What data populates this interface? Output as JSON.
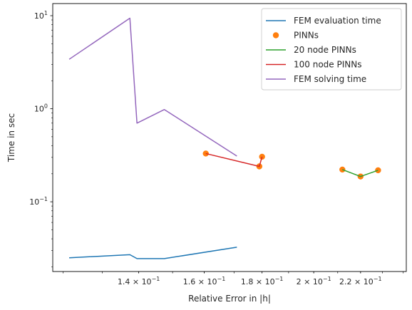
{
  "chart_data": {
    "type": "line",
    "xlabel": "Relative Error in |h|",
    "ylabel": "Time in sec",
    "xscale": "log",
    "yscale": "log",
    "xlim": [
      0.1175,
      0.2415
    ],
    "ylim": [
      0.0178,
      13.5
    ],
    "grid": false,
    "legend_position": "top-right",
    "x_ticks": [
      {
        "value": 0.14,
        "base": "1.4",
        "exp": "−1"
      },
      {
        "value": 0.16,
        "base": "1.6",
        "exp": "−1"
      },
      {
        "value": 0.18,
        "base": "1.8",
        "exp": "−1"
      },
      {
        "value": 0.2,
        "base": "2",
        "exp": "−1"
      },
      {
        "value": 0.22,
        "base": "2.2",
        "exp": "−1"
      }
    ],
    "y_ticks": [
      {
        "value": 0.1,
        "base": "10",
        "exp": "−1"
      },
      {
        "value": 1,
        "base": "10",
        "exp": "0"
      },
      {
        "value": 10,
        "base": "10",
        "exp": "1"
      }
    ],
    "series": [
      {
        "name": "FEM evaluation time",
        "style": "line",
        "color": "#1f77b4",
        "x": [
          0.1215,
          0.1375,
          0.1395,
          0.1475,
          0.171
        ],
        "y": [
          0.025,
          0.027,
          0.0245,
          0.0245,
          0.0325
        ]
      },
      {
        "name": "PINNs",
        "style": "markers",
        "color": "#ff7f0e",
        "x": [
          0.1605,
          0.179,
          0.18,
          0.212,
          0.22,
          0.228
        ],
        "y": [
          0.33,
          0.24,
          0.305,
          0.222,
          0.187,
          0.218
        ]
      },
      {
        "name": "20 node PINNs",
        "style": "line",
        "color": "#2ca02c",
        "x": [
          0.212,
          0.22,
          0.228
        ],
        "y": [
          0.222,
          0.187,
          0.218
        ]
      },
      {
        "name": "100 node PINNs",
        "style": "line",
        "color": "#d62728",
        "x": [
          0.1605,
          0.179,
          0.18
        ],
        "y": [
          0.33,
          0.24,
          0.305
        ]
      },
      {
        "name": "FEM solving time",
        "style": "line",
        "color": "#9467bd",
        "x": [
          0.1215,
          0.1375,
          0.1395,
          0.1475,
          0.171
        ],
        "y": [
          3.4,
          9.4,
          0.7,
          0.98,
          0.31
        ]
      }
    ]
  }
}
